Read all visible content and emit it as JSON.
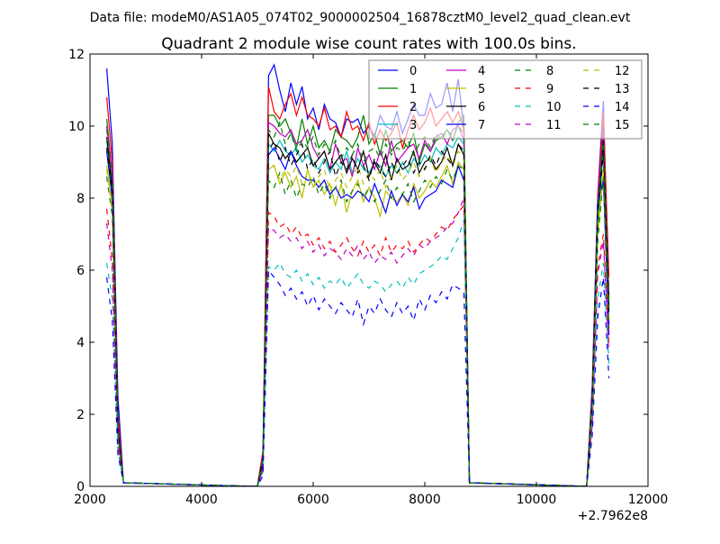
{
  "chart_data": {
    "type": "line",
    "suptitle": "Data file: modeM0/AS1A05_074T02_9000002504_16878cztM0_level2_quad_clean.evt",
    "title": "Quadrant 2 module wise count rates with 100.0s bins.",
    "xlabel": "",
    "ylabel": "",
    "x_offset_text": "+2.7962e8",
    "xlim": [
      2000,
      12000
    ],
    "ylim": [
      0,
      12
    ],
    "xticks": [
      "2000",
      "4000",
      "6000",
      "8000",
      "10000",
      "12000"
    ],
    "yticks": [
      "0",
      "2",
      "4",
      "6",
      "8",
      "10",
      "12"
    ],
    "grid": false,
    "legend_position": "top-right",
    "legend_columns": 4,
    "x": [
      2300,
      2400,
      2500,
      2600,
      4900,
      5000,
      5100,
      5200,
      5300,
      5400,
      5500,
      5600,
      5700,
      5800,
      5900,
      6000,
      6100,
      6200,
      6300,
      6400,
      6500,
      6600,
      6700,
      6800,
      6900,
      7000,
      7100,
      7200,
      7300,
      7400,
      7500,
      7600,
      7700,
      7800,
      7900,
      8000,
      8100,
      8200,
      8300,
      8400,
      8500,
      8600,
      8700,
      8800,
      10900,
      11000,
      11100,
      11200,
      11300
    ],
    "series": [
      {
        "name": "0",
        "color": "#0000ff",
        "style": "solid",
        "values": [
          11.6,
          9.5,
          2.5,
          0.1,
          0,
          0,
          0.6,
          11.4,
          11.7,
          11.0,
          10.4,
          11.2,
          10.6,
          11.1,
          10.2,
          10.5,
          9.9,
          10.6,
          10.2,
          10.1,
          9.7,
          10.2,
          10.1,
          10.2,
          9.8,
          10.0,
          9.7,
          10.3,
          10.0,
          9.9,
          10.4,
          9.8,
          10.2,
          10.6,
          10.3,
          10.3,
          10.9,
          10.5,
          10.6,
          11.2,
          10.4,
          11.3,
          9.9,
          0.1,
          0,
          2.8,
          8.1,
          10.7,
          4.5
        ]
      },
      {
        "name": "1",
        "color": "#008000",
        "style": "solid",
        "values": [
          10.2,
          8.6,
          1.8,
          0.1,
          0,
          0,
          0.9,
          10.3,
          10.3,
          10.0,
          10.2,
          9.8,
          9.4,
          10.2,
          9.5,
          10.0,
          9.4,
          9.6,
          9.3,
          9.9,
          9.7,
          9.6,
          9.4,
          9.7,
          10.3,
          9.5,
          9.8,
          9.2,
          9.9,
          9.3,
          9.5,
          9.6,
          9.4,
          9.8,
          9.0,
          9.5,
          9.3,
          9.6,
          9.7,
          9.9,
          9.6,
          10.1,
          10.3,
          0.1,
          0,
          2.4,
          7.8,
          10.1,
          5.2
        ]
      },
      {
        "name": "2",
        "color": "#ff0000",
        "style": "solid",
        "values": [
          10.8,
          9.0,
          2.0,
          0.1,
          0,
          0,
          1.0,
          11.1,
          10.4,
          10.2,
          10.6,
          10.9,
          10.3,
          10.8,
          10.3,
          10.2,
          10.0,
          10.5,
          9.9,
          10.0,
          9.7,
          10.4,
          9.9,
          10.0,
          9.6,
          10.1,
          9.5,
          9.9,
          9.6,
          9.8,
          10.1,
          9.4,
          9.9,
          10.3,
          9.9,
          10.1,
          10.5,
          10.0,
          10.2,
          10.4,
          10.1,
          10.4,
          9.9,
          0.1,
          0,
          2.6,
          8.0,
          10.4,
          5.8
        ]
      },
      {
        "name": "3",
        "color": "#00bfbf",
        "style": "solid",
        "values": [
          9.6,
          8.2,
          1.6,
          0.1,
          0,
          0,
          0.8,
          9.5,
          9.3,
          9.6,
          9.3,
          9.2,
          9.4,
          9.0,
          9.2,
          8.9,
          8.8,
          9.1,
          8.7,
          9.0,
          8.8,
          9.3,
          8.7,
          9.1,
          8.8,
          8.7,
          9.0,
          8.9,
          8.6,
          8.9,
          8.7,
          9.0,
          8.7,
          9.1,
          8.9,
          9.2,
          9.0,
          9.4,
          9.2,
          9.5,
          9.4,
          9.7,
          9.5,
          0.1,
          0,
          2.2,
          7.2,
          9.4,
          4.9
        ]
      },
      {
        "name": "4",
        "color": "#bf00bf",
        "style": "solid",
        "values": [
          10.0,
          8.7,
          1.7,
          0.1,
          0,
          0,
          0.9,
          10.1,
          10.0,
          9.8,
          9.7,
          9.9,
          9.5,
          9.6,
          9.9,
          9.4,
          9.1,
          9.3,
          8.8,
          9.5,
          9.0,
          9.1,
          8.6,
          9.4,
          8.9,
          9.2,
          8.8,
          9.3,
          8.9,
          9.6,
          9.0,
          9.2,
          9.4,
          9.5,
          9.1,
          9.6,
          9.3,
          9.7,
          9.8,
          9.5,
          9.9,
          10.0,
          9.6,
          0.1,
          0,
          2.5,
          7.9,
          9.9,
          5.3
        ]
      },
      {
        "name": "5",
        "color": "#bfbf00",
        "style": "solid",
        "values": [
          8.9,
          7.8,
          1.5,
          0.1,
          0,
          0,
          0.7,
          8.8,
          8.9,
          8.4,
          8.7,
          8.3,
          8.6,
          8.0,
          8.8,
          8.3,
          8.5,
          8.1,
          8.4,
          7.8,
          8.4,
          7.6,
          8.2,
          8.5,
          7.9,
          8.3,
          8.0,
          7.5,
          8.2,
          8.0,
          7.9,
          8.1,
          7.8,
          8.4,
          8.0,
          8.2,
          8.5,
          8.3,
          8.6,
          8.9,
          8.4,
          9.0,
          8.8,
          0.1,
          0,
          2.1,
          7.0,
          8.7,
          4.6
        ]
      },
      {
        "name": "6",
        "color": "#000000",
        "style": "solid",
        "values": [
          9.7,
          8.3,
          1.6,
          0.1,
          0,
          0,
          0.8,
          9.8,
          9.5,
          9.4,
          9.1,
          9.3,
          9.0,
          9.2,
          9.4,
          8.9,
          9.1,
          9.3,
          8.8,
          9.0,
          9.2,
          8.7,
          9.1,
          8.8,
          9.3,
          8.6,
          9.0,
          8.7,
          9.2,
          8.5,
          9.1,
          8.8,
          8.9,
          9.3,
          8.7,
          9.0,
          9.1,
          8.8,
          9.0,
          9.4,
          8.9,
          9.5,
          9.2,
          0.1,
          0,
          2.3,
          7.5,
          9.6,
          5.0
        ]
      },
      {
        "name": "7",
        "color": "#0000ff",
        "style": "solid",
        "values": [
          9.3,
          8.0,
          1.5,
          0.1,
          0,
          0,
          0.5,
          9.2,
          9.4,
          9.1,
          8.8,
          9.3,
          8.9,
          8.6,
          8.5,
          8.5,
          8.3,
          8.5,
          8.1,
          8.3,
          8.0,
          8.1,
          8.0,
          8.2,
          8.1,
          7.9,
          8.4,
          8.0,
          7.6,
          8.2,
          7.8,
          8.1,
          7.9,
          8.3,
          7.7,
          8.0,
          8.1,
          8.2,
          8.5,
          8.4,
          8.3,
          8.9,
          8.5,
          0.1,
          0,
          2.2,
          7.9,
          8.5,
          4.2
        ]
      },
      {
        "name": "8",
        "color": "#008000",
        "style": "dashed",
        "values": [
          8.6,
          7.5,
          1.4,
          0.1,
          0,
          0,
          0.6,
          8.5,
          8.3,
          8.7,
          8.1,
          8.5,
          8.0,
          8.4,
          8.3,
          8.6,
          8.1,
          8.4,
          8.0,
          8.3,
          8.5,
          7.9,
          8.2,
          8.4,
          8.0,
          8.3,
          7.9,
          8.2,
          8.5,
          8.0,
          8.3,
          8.1,
          8.4,
          7.9,
          8.2,
          8.5,
          8.3,
          8.6,
          8.4,
          8.8,
          8.5,
          8.9,
          8.8,
          0.1,
          0,
          2.0,
          6.8,
          8.6,
          4.4
        ]
      },
      {
        "name": "9",
        "color": "#ff0000",
        "style": "dashed",
        "values": [
          7.7,
          6.3,
          1.2,
          0.1,
          0,
          0,
          0.5,
          7.6,
          7.5,
          7.2,
          7.3,
          7.0,
          7.2,
          6.9,
          7.0,
          6.7,
          6.9,
          6.6,
          6.8,
          6.5,
          6.7,
          6.9,
          6.6,
          6.4,
          6.8,
          6.5,
          6.7,
          6.4,
          6.9,
          6.5,
          6.7,
          6.6,
          6.8,
          6.5,
          6.7,
          6.9,
          6.8,
          7.0,
          7.2,
          7.1,
          7.4,
          7.6,
          7.8,
          0.1,
          0,
          1.8,
          6.1,
          7.0,
          3.9
        ]
      },
      {
        "name": "10",
        "color": "#00bfbf",
        "style": "dashed",
        "values": [
          6.2,
          5.2,
          1.0,
          0.1,
          0,
          0,
          0.4,
          6.1,
          6.0,
          6.2,
          5.9,
          5.8,
          6.0,
          5.7,
          5.9,
          5.6,
          5.8,
          5.5,
          5.7,
          5.6,
          5.8,
          5.5,
          5.7,
          5.9,
          5.6,
          5.5,
          5.7,
          5.6,
          5.4,
          5.6,
          5.7,
          5.5,
          5.8,
          5.6,
          5.9,
          6.0,
          6.1,
          6.2,
          6.4,
          6.3,
          6.6,
          6.9,
          7.4,
          0.1,
          0,
          1.5,
          5.2,
          6.2,
          3.4
        ]
      },
      {
        "name": "11",
        "color": "#bf00bf",
        "style": "dashed",
        "values": [
          7.3,
          6.0,
          1.1,
          0.1,
          0,
          0,
          0.5,
          7.2,
          7.1,
          6.9,
          7.0,
          6.8,
          6.9,
          6.6,
          6.8,
          6.5,
          6.7,
          6.4,
          6.6,
          6.5,
          6.3,
          6.6,
          6.4,
          6.7,
          6.3,
          6.5,
          6.2,
          6.4,
          6.3,
          6.5,
          6.2,
          6.4,
          6.6,
          6.4,
          6.7,
          6.6,
          6.8,
          6.9,
          7.0,
          7.2,
          7.3,
          7.6,
          8.0,
          0.1,
          0,
          1.7,
          5.9,
          6.8,
          3.7
        ]
      },
      {
        "name": "12",
        "color": "#bfbf00",
        "style": "dashed",
        "values": [
          8.8,
          7.6,
          1.4,
          0.1,
          0,
          0,
          0.7,
          9.0,
          8.9,
          8.5,
          8.8,
          8.6,
          8.9,
          8.4,
          8.7,
          8.3,
          8.6,
          8.8,
          8.2,
          8.5,
          8.7,
          8.3,
          8.6,
          8.9,
          8.4,
          8.7,
          8.5,
          8.8,
          8.3,
          8.6,
          8.9,
          8.5,
          8.7,
          9.0,
          8.6,
          8.8,
          9.1,
          8.7,
          9.0,
          9.2,
          8.9,
          9.3,
          9.1,
          0.1,
          0,
          2.1,
          7.3,
          8.8,
          4.7
        ]
      },
      {
        "name": "13",
        "color": "#000000",
        "style": "dashed",
        "values": [
          9.4,
          8.1,
          1.5,
          0.1,
          0,
          0,
          0.7,
          9.3,
          9.6,
          9.0,
          9.4,
          8.9,
          9.2,
          9.5,
          8.8,
          9.1,
          8.7,
          9.0,
          9.3,
          8.6,
          9.0,
          8.8,
          9.2,
          8.7,
          8.9,
          8.5,
          9.1,
          8.8,
          8.6,
          9.0,
          8.7,
          8.9,
          9.1,
          8.7,
          9.0,
          8.8,
          9.2,
          8.9,
          9.3,
          9.1,
          8.9,
          9.5,
          9.3,
          0.1,
          0,
          2.3,
          7.6,
          9.2,
          4.8
        ]
      },
      {
        "name": "14",
        "color": "#0000ff",
        "style": "dashed",
        "values": [
          5.8,
          4.6,
          0.9,
          0.1,
          0,
          0,
          0.3,
          6.0,
          5.8,
          5.6,
          5.3,
          5.5,
          5.2,
          5.4,
          5.0,
          5.3,
          4.9,
          5.2,
          5.0,
          4.8,
          5.1,
          4.9,
          4.7,
          5.2,
          4.5,
          5.0,
          4.8,
          5.2,
          4.9,
          4.7,
          5.1,
          4.8,
          5.0,
          4.6,
          5.2,
          4.9,
          5.3,
          5.1,
          5.4,
          5.2,
          5.6,
          5.5,
          5.4,
          0.1,
          0,
          1.4,
          4.7,
          5.8,
          3.0
        ]
      },
      {
        "name": "15",
        "color": "#008000",
        "style": "dashed",
        "values": [
          9.9,
          8.5,
          1.7,
          0.1,
          0,
          0,
          0.8,
          9.9,
          9.7,
          10.1,
          9.5,
          9.8,
          9.3,
          9.6,
          9.4,
          9.7,
          9.2,
          9.5,
          9.3,
          9.6,
          9.1,
          9.4,
          9.2,
          9.5,
          9.0,
          9.3,
          9.4,
          9.1,
          9.5,
          9.2,
          9.4,
          9.3,
          9.6,
          9.2,
          9.5,
          9.7,
          9.4,
          9.8,
          9.6,
          9.9,
          9.7,
          10.0,
          9.8,
          0.1,
          0,
          2.4,
          7.7,
          9.7,
          5.1
        ]
      }
    ]
  }
}
